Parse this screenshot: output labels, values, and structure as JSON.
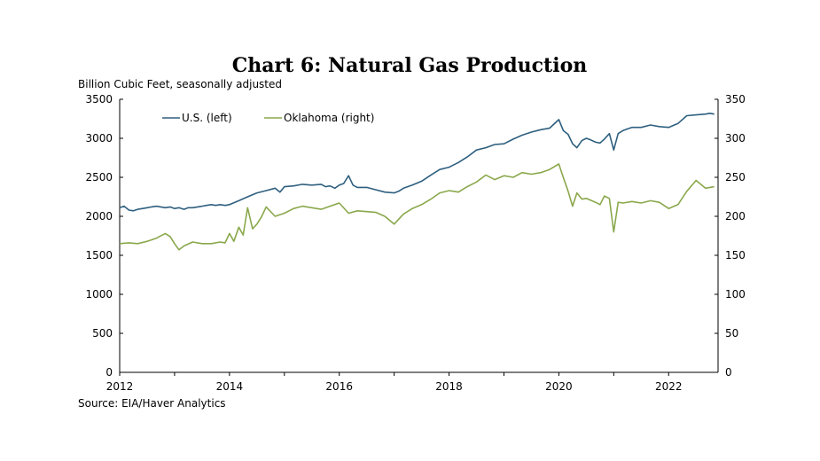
{
  "chart_data": {
    "type": "line",
    "title": "Chart 6: Natural Gas Production",
    "unit_label": "Billion Cubic Feet, seasonally adjusted",
    "source": "Source: EIA/Haver Analytics",
    "x_range": [
      2012.0,
      2022.9
    ],
    "x_ticks": [
      "2012",
      "2014",
      "2016",
      "2018",
      "2020",
      "2022"
    ],
    "x_tick_values": [
      2012,
      2014,
      2016,
      2018,
      2020,
      2022
    ],
    "y_left": {
      "min": 0,
      "max": 3500,
      "ticks": [
        "0",
        "500",
        "1000",
        "1500",
        "2000",
        "2500",
        "3000",
        "3500"
      ]
    },
    "y_right": {
      "min": 0,
      "max": 350,
      "ticks": [
        "0",
        "50",
        "100",
        "150",
        "200",
        "250",
        "300",
        "350"
      ]
    },
    "grid": false,
    "legend_position": "top-left",
    "series": [
      {
        "name": "U.S. (left)",
        "axis": "left",
        "color": "#2e5f7f",
        "x": [
          2012.0,
          2012.08,
          2012.17,
          2012.25,
          2012.33,
          2012.42,
          2012.5,
          2012.58,
          2012.67,
          2012.75,
          2012.83,
          2012.92,
          2013.0,
          2013.08,
          2013.17,
          2013.25,
          2013.33,
          2013.42,
          2013.5,
          2013.58,
          2013.67,
          2013.75,
          2013.83,
          2013.92,
          2014.0,
          2014.17,
          2014.33,
          2014.5,
          2014.67,
          2014.83,
          2014.92,
          2015.0,
          2015.17,
          2015.33,
          2015.5,
          2015.67,
          2015.75,
          2015.83,
          2015.92,
          2016.0,
          2016.08,
          2016.17,
          2016.25,
          2016.33,
          2016.5,
          2016.67,
          2016.83,
          2017.0,
          2017.08,
          2017.17,
          2017.33,
          2017.5,
          2017.67,
          2017.83,
          2018.0,
          2018.17,
          2018.33,
          2018.5,
          2018.67,
          2018.83,
          2019.0,
          2019.17,
          2019.33,
          2019.5,
          2019.67,
          2019.83,
          2020.0,
          2020.08,
          2020.17,
          2020.25,
          2020.33,
          2020.42,
          2020.5,
          2020.58,
          2020.67,
          2020.75,
          2020.83,
          2020.92,
          2021.0,
          2021.08,
          2021.17,
          2021.25,
          2021.33,
          2021.5,
          2021.67,
          2021.83,
          2022.0,
          2022.17,
          2022.33,
          2022.5,
          2022.67,
          2022.75,
          2022.83
        ],
        "values": [
          2110,
          2130,
          2080,
          2070,
          2090,
          2100,
          2110,
          2120,
          2130,
          2120,
          2110,
          2120,
          2100,
          2110,
          2090,
          2110,
          2110,
          2120,
          2130,
          2140,
          2150,
          2140,
          2150,
          2140,
          2150,
          2200,
          2250,
          2300,
          2330,
          2360,
          2310,
          2380,
          2390,
          2410,
          2400,
          2410,
          2380,
          2390,
          2360,
          2400,
          2420,
          2520,
          2400,
          2370,
          2370,
          2340,
          2310,
          2300,
          2320,
          2360,
          2400,
          2450,
          2530,
          2600,
          2630,
          2690,
          2760,
          2850,
          2880,
          2920,
          2930,
          2990,
          3040,
          3080,
          3110,
          3130,
          3240,
          3100,
          3050,
          2930,
          2880,
          2970,
          3000,
          2980,
          2950,
          2940,
          2990,
          3060,
          2850,
          3060,
          3100,
          3120,
          3140,
          3140,
          3170,
          3150,
          3140,
          3190,
          3290,
          3300,
          3310,
          3320,
          3310
        ]
      },
      {
        "name": "Oklahoma (right)",
        "axis": "right",
        "color": "#8aa84c",
        "x": [
          2012.0,
          2012.17,
          2012.33,
          2012.5,
          2012.67,
          2012.83,
          2012.92,
          2013.0,
          2013.08,
          2013.17,
          2013.33,
          2013.5,
          2013.67,
          2013.83,
          2013.92,
          2014.0,
          2014.08,
          2014.17,
          2014.25,
          2014.33,
          2014.42,
          2014.5,
          2014.58,
          2014.67,
          2014.83,
          2015.0,
          2015.17,
          2015.33,
          2015.5,
          2015.67,
          2015.83,
          2016.0,
          2016.17,
          2016.33,
          2016.5,
          2016.67,
          2016.83,
          2017.0,
          2017.17,
          2017.33,
          2017.5,
          2017.67,
          2017.83,
          2018.0,
          2018.17,
          2018.33,
          2018.5,
          2018.67,
          2018.83,
          2019.0,
          2019.17,
          2019.33,
          2019.5,
          2019.67,
          2019.83,
          2020.0,
          2020.08,
          2020.17,
          2020.25,
          2020.33,
          2020.42,
          2020.5,
          2020.67,
          2020.75,
          2020.83,
          2020.92,
          2021.0,
          2021.08,
          2021.17,
          2021.33,
          2021.5,
          2021.67,
          2021.83,
          2022.0,
          2022.17,
          2022.33,
          2022.5,
          2022.67,
          2022.83
        ],
        "values": [
          165,
          166,
          165,
          168,
          172,
          178,
          174,
          165,
          157,
          162,
          167,
          165,
          165,
          167,
          166,
          178,
          168,
          186,
          176,
          211,
          184,
          190,
          199,
          212,
          200,
          204,
          210,
          213,
          211,
          209,
          213,
          217,
          204,
          207,
          206,
          205,
          200,
          190,
          203,
          210,
          215,
          222,
          230,
          233,
          231,
          238,
          244,
          253,
          247,
          252,
          250,
          256,
          254,
          256,
          260,
          267,
          250,
          232,
          213,
          230,
          222,
          223,
          218,
          215,
          226,
          223,
          180,
          218,
          217,
          219,
          217,
          220,
          218,
          210,
          215,
          232,
          246,
          236,
          238
        ]
      }
    ]
  }
}
